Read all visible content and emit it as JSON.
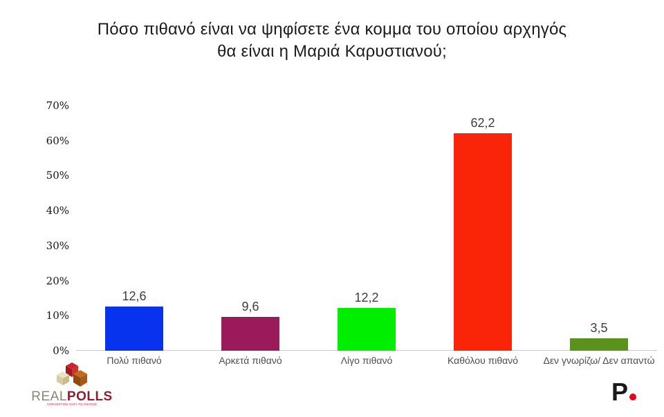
{
  "title_lines": [
    "Πόσο πιθανό είναι να ψηφίσετε ένα κομμα του οποίου αρχηγός",
    "θα είναι η Μαριά Καρυστιανού;"
  ],
  "chart_data": {
    "type": "bar",
    "title": "Πόσο πιθανό είναι να ψηφίσετε ένα κομμα του οποίου αρχηγός θα είναι η Μαριά Καρυστιανού;",
    "categories": [
      "Πολύ πιθανό",
      "Αρκετά πιθανό",
      "Λίγο πιθανό",
      "Καθόλου πιθανό",
      "Δεν γνωρίζω/ Δεν απαντώ"
    ],
    "values": [
      12.6,
      9.6,
      12.2,
      62.2,
      3.5
    ],
    "value_labels": [
      "12,6",
      "9,6",
      "12,2",
      "62,2",
      "3,5"
    ],
    "bar_colors": [
      "#0833ee",
      "#9a1a5b",
      "#00ef00",
      "#fa2408",
      "#5a921c"
    ],
    "xlabel": "",
    "ylabel": "",
    "ylim": [
      0,
      70
    ],
    "ytick_labels": [
      "0%",
      "10%",
      "20%",
      "30%",
      "40%",
      "50%",
      "60%",
      "70%"
    ],
    "ytick_values": [
      0,
      10,
      20,
      30,
      40,
      50,
      60,
      70
    ],
    "grid": false,
    "legend": "none",
    "axis_color": "#c9c9c9"
  },
  "footer": {
    "realpolls": {
      "name_part1": "REAL",
      "name_part2": "POLLS",
      "tagline": "CONVERTING DATA TO INSIGHT",
      "icon_colors": {
        "red_top": "#d1202f",
        "red_left": "#a5161f",
        "red_right": "#c0392b",
        "cream_top": "#ece1c4",
        "cream_left": "#d9cba6",
        "cream_right": "#c9b98f",
        "brown_top": "#c26a24",
        "brown_left": "#8f4a12",
        "brown_right": "#a85a1b"
      }
    },
    "proto": {
      "letter": "P",
      "letter_color": "#1a1a1a",
      "dot_color": "#e8001d"
    }
  }
}
